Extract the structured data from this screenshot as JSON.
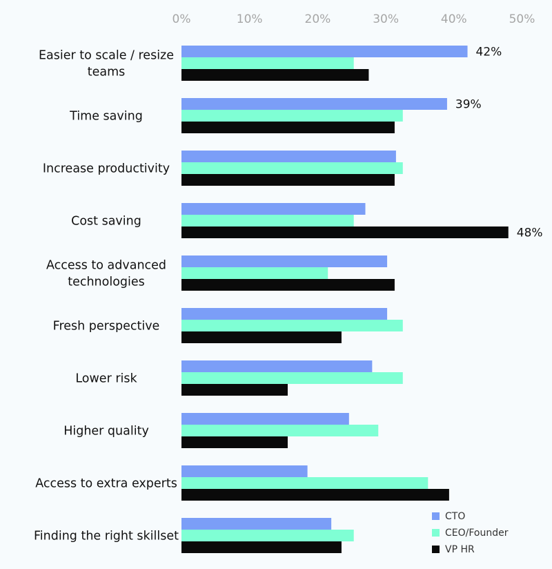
{
  "chart_data": {
    "type": "bar",
    "orientation": "horizontal",
    "categories": [
      [
        "Easier to scale / resize",
        "teams"
      ],
      [
        "Time saving"
      ],
      [
        "Increase productivity"
      ],
      [
        "Cost saving"
      ],
      [
        "Access to advanced",
        "technologies"
      ],
      [
        "Fresh perspective"
      ],
      [
        "Lower risk"
      ],
      [
        "Higher quality"
      ],
      [
        "Access to extra experts"
      ],
      [
        "Finding the right skillset"
      ]
    ],
    "series": [
      {
        "name": "CTO",
        "color": "#7b9ef7",
        "values": [
          42,
          39,
          31.5,
          27,
          30.2,
          30.2,
          28,
          24.6,
          18.5,
          22
        ]
      },
      {
        "name": "CEO/Founder",
        "color": "#7fffd4",
        "values": [
          25.3,
          32.5,
          32.5,
          25.3,
          21.5,
          32.5,
          32.5,
          28.9,
          36.2,
          25.3
        ]
      },
      {
        "name": "VP HR",
        "color": "#0a0a0a",
        "values": [
          27.5,
          31.3,
          31.3,
          48,
          31.3,
          23.5,
          15.6,
          15.6,
          39.3,
          23.5
        ]
      }
    ],
    "data_labels": [
      {
        "series": 0,
        "category": 0,
        "text": "42%"
      },
      {
        "series": 0,
        "category": 1,
        "text": "39%"
      },
      {
        "series": 2,
        "category": 3,
        "text": "48%"
      }
    ],
    "xticks": [
      "0%",
      "10%",
      "20%",
      "30%",
      "40%",
      "50%"
    ],
    "xlim": [
      0,
      50
    ],
    "grid": false,
    "legend_position": "bottom-right"
  }
}
